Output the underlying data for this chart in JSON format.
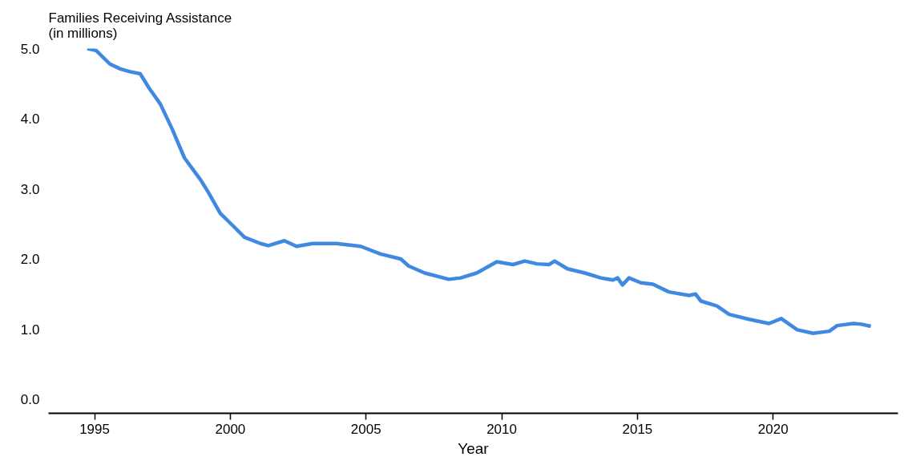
{
  "chart_data": {
    "type": "line",
    "ylabel": "Families Receiving Assistance\n(in millions)",
    "xlabel": "Year",
    "x": [
      1994.73,
      1995.06,
      1995.56,
      1995.94,
      1996.3,
      1996.68,
      1997.0,
      1997.42,
      1997.86,
      1998.31,
      1998.9,
      1999.19,
      1999.63,
      2000.08,
      2000.52,
      2001.11,
      2001.4,
      2001.99,
      2002.44,
      2003.03,
      2003.91,
      2004.8,
      2005.54,
      2006.28,
      2006.57,
      2007.16,
      2008.05,
      2008.49,
      2009.08,
      2009.82,
      2010.41,
      2010.85,
      2011.3,
      2011.74,
      2011.95,
      2012.42,
      2013.06,
      2013.65,
      2014.1,
      2014.27,
      2014.45,
      2014.69,
      2015.13,
      2015.57,
      2016.16,
      2016.9,
      2017.14,
      2017.34,
      2017.93,
      2018.38,
      2019.11,
      2019.85,
      2020.3,
      2020.89,
      2021.48,
      2022.07,
      2022.36,
      2022.95,
      2023.25,
      2023.6
    ],
    "series": [
      {
        "color": "#3f8ae0",
        "values": [
          5.0,
          4.97,
          4.78,
          4.71,
          4.67,
          4.64,
          4.44,
          4.21,
          3.85,
          3.44,
          3.13,
          2.95,
          2.65,
          2.48,
          2.31,
          2.22,
          2.19,
          2.26,
          2.18,
          2.22,
          2.22,
          2.18,
          2.07,
          2.0,
          1.9,
          1.8,
          1.71,
          1.73,
          1.8,
          1.96,
          1.92,
          1.97,
          1.93,
          1.92,
          1.97,
          1.86,
          1.8,
          1.73,
          1.7,
          1.73,
          1.63,
          1.73,
          1.66,
          1.64,
          1.53,
          1.48,
          1.5,
          1.4,
          1.33,
          1.21,
          1.14,
          1.08,
          1.15,
          0.99,
          0.94,
          0.97,
          1.05,
          1.08,
          1.07,
          1.04
        ]
      }
    ],
    "xlim": [
      1993.3,
      2024.6
    ],
    "ylim": [
      -0.2,
      5.0
    ],
    "xticks": [
      1995,
      2000,
      2005,
      2010,
      2015,
      2020
    ],
    "yticks": [
      {
        "value": 0,
        "label": "0.0"
      },
      {
        "value": 1,
        "label": "1.0"
      },
      {
        "value": 2,
        "label": "2.0"
      },
      {
        "value": 3,
        "label": "3.0"
      },
      {
        "value": 4,
        "label": "4.0"
      },
      {
        "value": 5,
        "label": "5.0"
      }
    ],
    "grid": false,
    "marker": "none",
    "line_style": "solid"
  }
}
